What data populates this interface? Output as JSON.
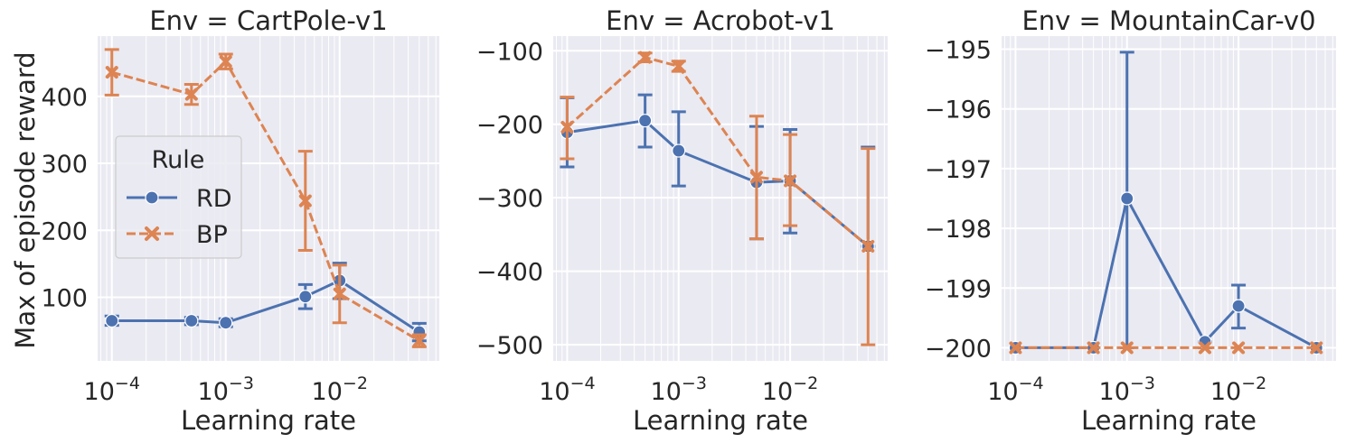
{
  "figure": {
    "ylabel": "Max of episode reward",
    "legend": {
      "title": "Rule",
      "placement": "center-left of first panel"
    },
    "series_styles": [
      {
        "name": "RD",
        "color": "#4c72b0",
        "marker": "circle",
        "dash": "solid"
      },
      {
        "name": "BP",
        "color": "#dd8452",
        "marker": "x",
        "dash": "dashed"
      }
    ],
    "background": "#eaeaf2",
    "grid": true
  },
  "chart_data": [
    {
      "type": "line",
      "title": "Env = CartPole-v1",
      "xlabel": "Learning rate",
      "xscale": "log",
      "xlim": [
        7.5e-05,
        0.075
      ],
      "ylim": [
        5,
        490
      ],
      "x_ticks": [
        {
          "value": 0.0001,
          "base": "10",
          "exp": "−4"
        },
        {
          "value": 0.001,
          "base": "10",
          "exp": "−3"
        },
        {
          "value": 0.01,
          "base": "10",
          "exp": "−2"
        }
      ],
      "y_ticks": [
        {
          "value": 100,
          "label": "100"
        },
        {
          "value": 200,
          "label": "200"
        },
        {
          "value": 300,
          "label": "300"
        },
        {
          "value": 400,
          "label": "400"
        }
      ],
      "series": [
        {
          "name": "RD",
          "x": [
            0.0001,
            0.0005,
            0.001,
            0.005,
            0.01,
            0.05
          ],
          "y": [
            65,
            65,
            62,
            101,
            125,
            48
          ],
          "err_low": [
            58,
            59,
            56,
            83,
            98,
            35
          ],
          "err_high": [
            72,
            70,
            68,
            119,
            151,
            61
          ]
        },
        {
          "name": "BP",
          "x": [
            0.0001,
            0.0005,
            0.001,
            0.005,
            0.01,
            0.05
          ],
          "y": [
            436,
            403,
            452,
            244,
            105,
            35
          ],
          "err_low": [
            402,
            388,
            441,
            170,
            62,
            26
          ],
          "err_high": [
            470,
            418,
            463,
            318,
            148,
            44
          ]
        }
      ]
    },
    {
      "type": "line",
      "title": "Env = Acrobot-v1",
      "xlabel": "Learning rate",
      "xscale": "log",
      "xlim": [
        7.5e-05,
        0.075
      ],
      "ylim": [
        -522,
        -80
      ],
      "x_ticks": [
        {
          "value": 0.0001,
          "base": "10",
          "exp": "−4"
        },
        {
          "value": 0.001,
          "base": "10",
          "exp": "−3"
        },
        {
          "value": 0.01,
          "base": "10",
          "exp": "−2"
        }
      ],
      "y_ticks": [
        {
          "value": -100,
          "label": "−100"
        },
        {
          "value": -200,
          "label": "−200"
        },
        {
          "value": -300,
          "label": "−300"
        },
        {
          "value": -400,
          "label": "−400"
        },
        {
          "value": -500,
          "label": "−500"
        }
      ],
      "series": [
        {
          "name": "RD",
          "x": [
            0.0001,
            0.0005,
            0.001,
            0.005,
            0.01,
            0.05
          ],
          "y": [
            -211,
            -195,
            -236,
            -279,
            -277,
            -366
          ],
          "err_low": [
            -258,
            -231,
            -284,
            -356,
            -348,
            -366
          ],
          "err_high": [
            -164,
            -160,
            -183,
            -203,
            -207,
            -231
          ]
        },
        {
          "name": "BP",
          "x": [
            0.0001,
            0.0005,
            0.001,
            0.005,
            0.01,
            0.05
          ],
          "y": [
            -204,
            -109,
            -121,
            -272,
            -277,
            -366
          ],
          "err_low": [
            -247,
            -115,
            -128,
            -356,
            -338,
            -500
          ],
          "err_high": [
            -163,
            -103,
            -114,
            -189,
            -214,
            -233
          ]
        }
      ]
    },
    {
      "type": "line",
      "title": "Env = MountainCar-v0",
      "xlabel": "Learning rate",
      "xscale": "log",
      "xlim": [
        7.5e-05,
        0.075
      ],
      "ylim": [
        -200.22,
        -194.78
      ],
      "x_ticks": [
        {
          "value": 0.0001,
          "base": "10",
          "exp": "−4"
        },
        {
          "value": 0.001,
          "base": "10",
          "exp": "−3"
        },
        {
          "value": 0.01,
          "base": "10",
          "exp": "−2"
        }
      ],
      "y_ticks": [
        {
          "value": -195,
          "label": "−195"
        },
        {
          "value": -196,
          "label": "−196"
        },
        {
          "value": -197,
          "label": "−197"
        },
        {
          "value": -198,
          "label": "−198"
        },
        {
          "value": -199,
          "label": "−199"
        },
        {
          "value": -200,
          "label": "−200"
        }
      ],
      "series": [
        {
          "name": "RD",
          "x": [
            0.0001,
            0.0005,
            0.001,
            0.005,
            0.01,
            0.05
          ],
          "y": [
            -200,
            -200,
            -197.5,
            -199.9,
            -199.3,
            -200
          ],
          "err_low": [
            -200,
            -200,
            -200,
            -200,
            -199.67,
            -200
          ],
          "err_high": [
            -200,
            -200,
            -195.05,
            -199.9,
            -198.95,
            -200
          ]
        },
        {
          "name": "BP",
          "x": [
            0.0001,
            0.0005,
            0.001,
            0.005,
            0.01,
            0.05
          ],
          "y": [
            -200,
            -200,
            -200,
            -200,
            -200,
            -200
          ],
          "err_low": [
            -200,
            -200,
            -200,
            -200,
            -200,
            -200
          ],
          "err_high": [
            -200,
            -200,
            -200,
            -200,
            -200,
            -200
          ]
        }
      ]
    }
  ]
}
